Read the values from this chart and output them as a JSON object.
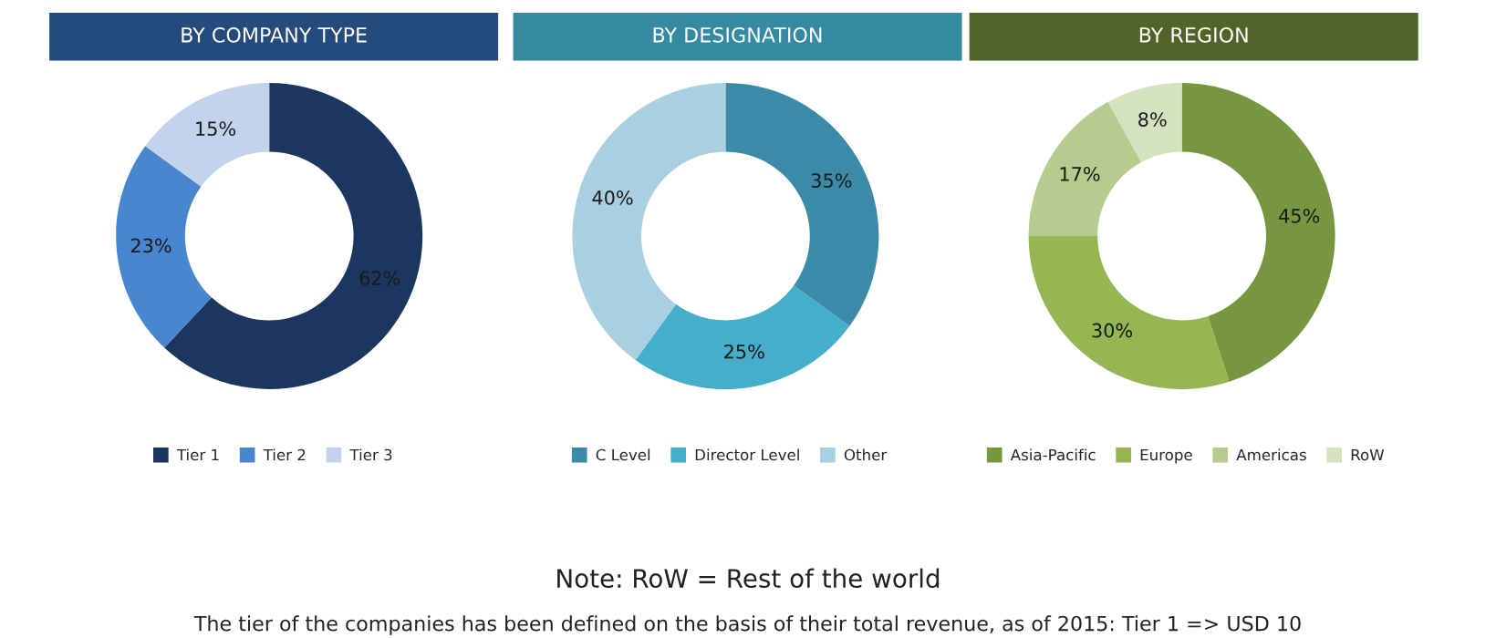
{
  "chart_data": [
    {
      "type": "donut",
      "title": "BY COMPANY TYPE",
      "categories": [
        "Tier 1",
        "Tier 2",
        "Tier 3"
      ],
      "values": [
        62,
        23,
        15
      ],
      "value_labels": [
        "62%",
        "23%",
        "15%"
      ],
      "colors": [
        "#1b365f",
        "#4a86d0",
        "#c3d3ec"
      ],
      "legend": "bottom",
      "annotations": [
        "Note: RoW = Rest of the world",
        "The tier of the companies has been defined on the basis of their total revenue, as of 2015: Tier 1 => USD 10"
      ]
    },
    {
      "type": "donut",
      "title": "BY DESIGNATION",
      "categories": [
        "C Level",
        "Director Level",
        "Other"
      ],
      "values": [
        35,
        25,
        40
      ],
      "value_labels": [
        "35%",
        "25%",
        "40%"
      ],
      "colors": [
        "#3b8ba8",
        "#45aecb",
        "#a9cfe0"
      ],
      "legend": "bottom"
    },
    {
      "type": "donut",
      "title": "BY REGION",
      "categories": [
        "Asia-Pacific",
        "Europe",
        "Americas",
        "RoW"
      ],
      "values": [
        45,
        30,
        17,
        8
      ],
      "value_labels": [
        "45%",
        "30%",
        "17%",
        "8%"
      ],
      "colors": [
        "#76973f",
        "#94b653",
        "#b5cc8e",
        "#d5e2c0"
      ],
      "legend": "bottom"
    }
  ]
}
